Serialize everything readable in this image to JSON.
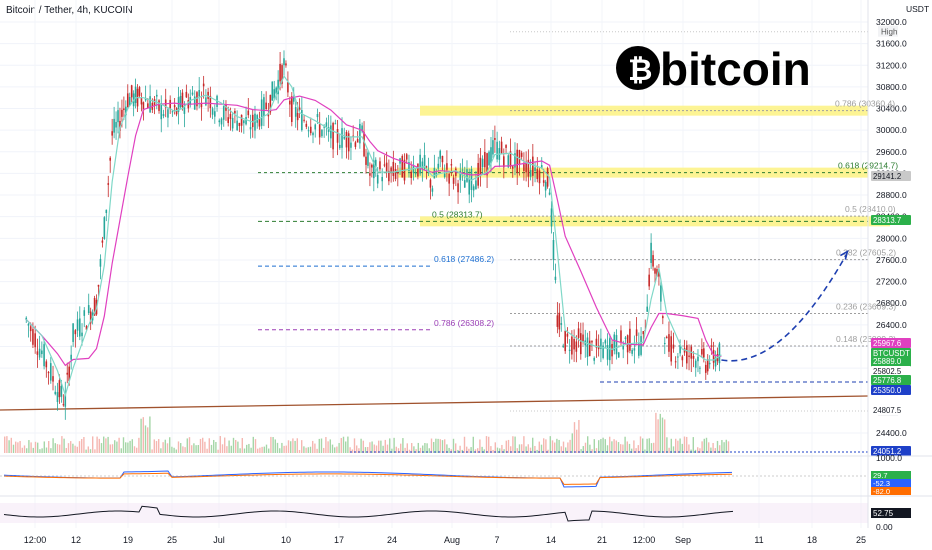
{
  "header": {
    "title": "Bitcoin / Tether, 4h, KUCOIN"
  },
  "logo": {
    "text": "bitcoin",
    "symbol": "₿"
  },
  "colors": {
    "up": "#26a69a",
    "down": "#ef5350",
    "candle": "#c62828",
    "ma_pink": "#e040c0",
    "ma_teal": "#80d8c8",
    "fib_band": "#fdf281",
    "trend": "#a0522d",
    "projection": "#1e3fb0",
    "green_badge": "#2bb04a",
    "blue_badge": "#1e40c8"
  },
  "chart_data": {
    "type": "line",
    "title": "Bitcoin / Tether, 4h, KUCOIN",
    "ylabel": "USDT",
    "ylim": [
      24000,
      32000
    ],
    "y_ticks": [
      "32000.0",
      "31600.0",
      "31200.0",
      "30800.0",
      "30400.0",
      "30000.0",
      "29600.0",
      "29200.0",
      "28800.0",
      "28400.0",
      "28000.0",
      "27600.0",
      "27200.0",
      "26800.0",
      "26400.0",
      "26000.0",
      "25600.0",
      "24400.0"
    ],
    "x_ticks": [
      "12:00",
      "12",
      "19",
      "25",
      "Jul",
      "10",
      "17",
      "24",
      "Aug",
      "7",
      "14",
      "21",
      "12:00",
      "Sep",
      "11",
      "18",
      "25"
    ],
    "price_series": {
      "name": "BTCUSDT",
      "points": [
        [
          "Jun 10",
          26500
        ],
        [
          "Jun 12",
          25900
        ],
        [
          "Jun 14",
          25200
        ],
        [
          "Jun 15",
          25000
        ],
        [
          "Jun 16",
          26200
        ],
        [
          "Jun 18",
          26600
        ],
        [
          "Jun 19",
          26800
        ],
        [
          "Jun 20",
          28200
        ],
        [
          "Jun 21",
          29900
        ],
        [
          "Jun 22",
          30200
        ],
        [
          "Jun 23",
          30600
        ],
        [
          "Jun 24",
          30600
        ],
        [
          "Jun 25",
          30600
        ],
        [
          "Jun 27",
          30400
        ],
        [
          "Jun 29",
          30300
        ],
        [
          "Jun 30",
          30500
        ],
        [
          "Jul 1",
          30600
        ],
        [
          "Jul 3",
          30700
        ],
        [
          "Jul 5",
          30300
        ],
        [
          "Jul 7",
          30200
        ],
        [
          "Jul 9",
          30100
        ],
        [
          "Jul 11",
          30500
        ],
        [
          "Jul 12",
          30800
        ],
        [
          "Jul 13",
          31200
        ],
        [
          "Jul 14",
          30400
        ],
        [
          "Jul 15",
          30250
        ],
        [
          "Jul 17",
          30100
        ],
        [
          "Jul 19",
          29900
        ],
        [
          "Jul 21",
          29850
        ],
        [
          "Jul 23",
          29900
        ],
        [
          "Jul 24",
          29200
        ],
        [
          "Jul 25",
          29250
        ],
        [
          "Jul 27",
          29200
        ],
        [
          "Jul 29",
          29350
        ],
        [
          "Jul 31",
          29300
        ],
        [
          "Aug 1",
          29000
        ],
        [
          "Aug 2",
          29400
        ],
        [
          "Aug 4",
          29100
        ],
        [
          "Aug 6",
          29050
        ],
        [
          "Aug 8",
          29400
        ],
        [
          "Aug 9",
          29700
        ],
        [
          "Aug 11",
          29450
        ],
        [
          "Aug 13",
          29350
        ],
        [
          "Aug 15",
          29250
        ],
        [
          "Aug 16",
          29000
        ],
        [
          "Aug 17",
          26500
        ],
        [
          "Aug 18",
          26100
        ],
        [
          "Aug 20",
          26100
        ],
        [
          "Aug 22",
          25900
        ],
        [
          "Aug 24",
          26000
        ],
        [
          "Aug 26",
          26100
        ],
        [
          "Aug 28",
          26050
        ],
        [
          "Aug 29",
          27700
        ],
        [
          "Aug 30",
          27200
        ],
        [
          "Aug 31",
          26000
        ],
        [
          "Sep 2",
          25900
        ],
        [
          "Sep 4",
          25800
        ],
        [
          "Sep 5",
          25700
        ],
        [
          "Sep 6",
          25800
        ],
        [
          "Sep 7",
          25889
        ]
      ]
    },
    "projection": {
      "from": [
        "Sep 7",
        25750
      ],
      "to": [
        "Sep 23",
        27700
      ]
    },
    "horizontal_lines": [
      {
        "name": "High",
        "value": 31819.9
      },
      {
        "name": "Low",
        "value": 24807.5
      }
    ],
    "fib_levels": [
      {
        "label": "0.786 (30360.4)",
        "value": 30360.4
      },
      {
        "label": "0.618 (29214.7)",
        "value": 29214.7
      },
      {
        "label": "0.5 (28410.0)",
        "value": 28410.0
      },
      {
        "label": "0.382 (27605.2)",
        "value": 27605.2
      },
      {
        "label": "0.236 (26609.3)",
        "value": 26609.3
      },
      {
        "label": "0.148 (26009.3)",
        "value": 26009.3
      },
      {
        "label": "0.5 (28313.7)",
        "value": 28313.7
      },
      {
        "label": "0.618 (27486.2)",
        "value": 27486.2
      },
      {
        "label": "0.786 (26308.2)",
        "value": 26308.2
      }
    ],
    "price_badges": [
      {
        "text": "29141.2",
        "color": "#c9c9c9"
      },
      {
        "text": "28313.7",
        "color": "#2bb04a"
      },
      {
        "text": "25967.6",
        "color": "#e040c0"
      },
      {
        "text": "BTCUSDT",
        "color": "#2bb04a"
      },
      {
        "text": "25889.0",
        "color": "#2bb04a"
      },
      {
        "text": "03:15:46",
        "color": "#2bb04a"
      },
      {
        "text": "25802.5",
        "color": "#ffffff"
      },
      {
        "text": "25776.8",
        "color": "#2bb04a"
      },
      {
        "text": "25350.0",
        "color": "#1e40c8"
      },
      {
        "text": "24807.5",
        "color": "#ffffff"
      },
      {
        "text": "24051.2",
        "color": "#1e40c8"
      }
    ],
    "macd": {
      "ticks": [
        "1000.0"
      ],
      "badges": [
        "29.7",
        "-52.3",
        "-82.0"
      ]
    },
    "rsi": {
      "value": "52.75",
      "ticks": [
        "0.00"
      ]
    }
  }
}
